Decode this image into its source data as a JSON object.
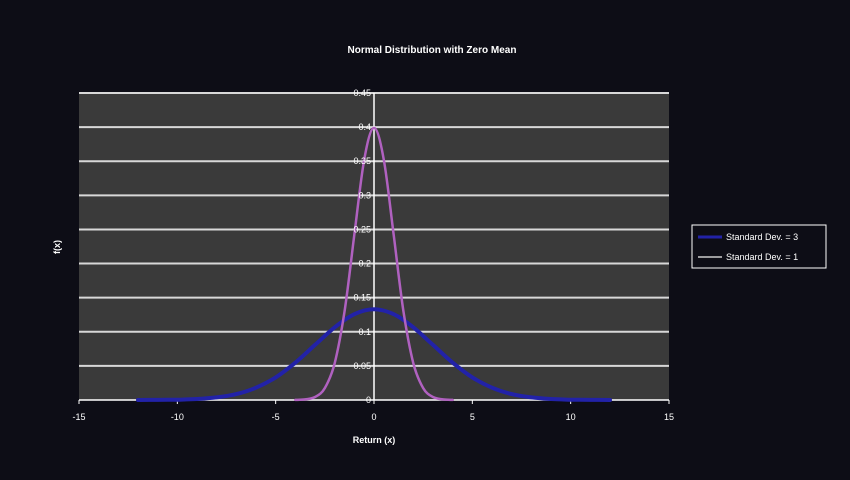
{
  "chart_data": {
    "type": "line",
    "title": "Normal Distribution with Zero Mean",
    "xlabel": "Return (x)",
    "ylabel": "f(x)",
    "xlim": [
      -15,
      15
    ],
    "ylim": [
      0,
      0.45
    ],
    "x_ticks": [
      "-15",
      "-10",
      "-5",
      "0",
      "5",
      "10",
      "15"
    ],
    "y_ticks": [
      "0",
      "0.05",
      "0.1",
      "0.15",
      "0.2",
      "0.25",
      "0.3",
      "0.35",
      "0.4",
      "0.45"
    ],
    "grid": true,
    "legend_position": "right",
    "background": "#3a3a3a",
    "series": [
      {
        "name": "Standard Dev. = 3",
        "color": "#2222a8",
        "x": [
          -12,
          -11,
          -10,
          -9,
          -8,
          -7,
          -6,
          -5,
          -4,
          -3,
          -2,
          -1,
          0,
          1,
          2,
          3,
          4,
          5,
          6,
          7,
          8,
          9,
          10,
          11,
          12
        ],
        "values": [
          0.0,
          0.0002,
          0.0005,
          0.0015,
          0.0038,
          0.0087,
          0.018,
          0.0332,
          0.0547,
          0.0807,
          0.1065,
          0.1258,
          0.133,
          0.1258,
          0.1065,
          0.0807,
          0.0547,
          0.0332,
          0.018,
          0.0087,
          0.0038,
          0.0015,
          0.0005,
          0.0002,
          0.0
        ]
      },
      {
        "name": "Standard Dev. = 1",
        "color": "#b061c0",
        "x": [
          -4,
          -3.5,
          -3,
          -2.5,
          -2,
          -1.5,
          -1,
          -0.5,
          0,
          0.5,
          1,
          1.5,
          2,
          2.5,
          3,
          3.5,
          4
        ],
        "values": [
          0.0001,
          0.0009,
          0.0044,
          0.0175,
          0.054,
          0.1295,
          0.242,
          0.3521,
          0.3989,
          0.3521,
          0.242,
          0.1295,
          0.054,
          0.0175,
          0.0044,
          0.0009,
          0.0001
        ]
      }
    ]
  }
}
